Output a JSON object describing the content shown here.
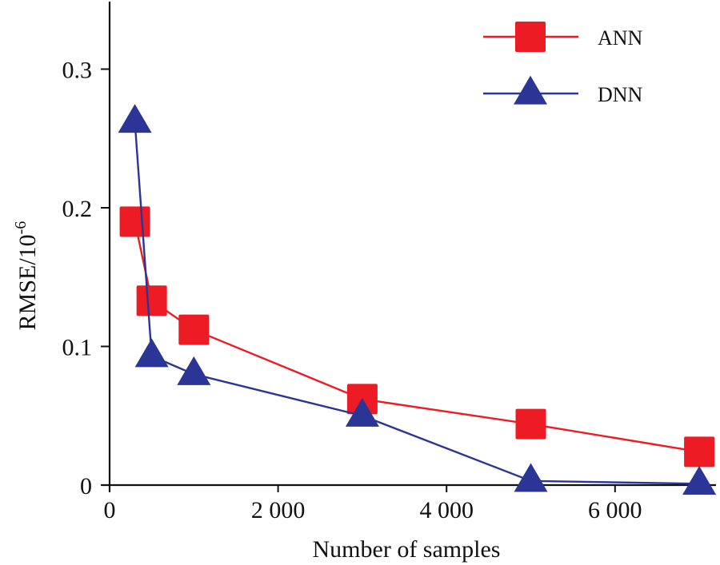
{
  "chart_data": {
    "type": "line",
    "title": "",
    "xlabel": "Number of samples",
    "ylabel": "RMSE/10",
    "ylabel_superscript": "-6",
    "xlim": [
      0,
      7200
    ],
    "ylim": [
      0,
      0.35
    ],
    "xticks": [
      0,
      2000,
      4000,
      6000
    ],
    "xtick_labels": [
      "0",
      "2 000",
      "4 000",
      "6 000"
    ],
    "yticks": [
      0,
      0.1,
      0.2,
      0.3
    ],
    "ytick_labels": [
      "0",
      "0.1",
      "0.2",
      "0.3"
    ],
    "grid": false,
    "legend_position": "top-right",
    "series": [
      {
        "name": "ANN",
        "color": "#ed1c24",
        "marker": "square",
        "x": [
          300,
          500,
          1000,
          3000,
          5000,
          7000
        ],
        "y": [
          0.19,
          0.133,
          0.112,
          0.062,
          0.044,
          0.024
        ]
      },
      {
        "name": "DNN",
        "color": "#2b3595",
        "marker": "triangle",
        "x": [
          300,
          500,
          1000,
          3000,
          5000,
          7000
        ],
        "y": [
          0.262,
          0.093,
          0.08,
          0.05,
          0.003,
          0.001
        ]
      }
    ]
  }
}
